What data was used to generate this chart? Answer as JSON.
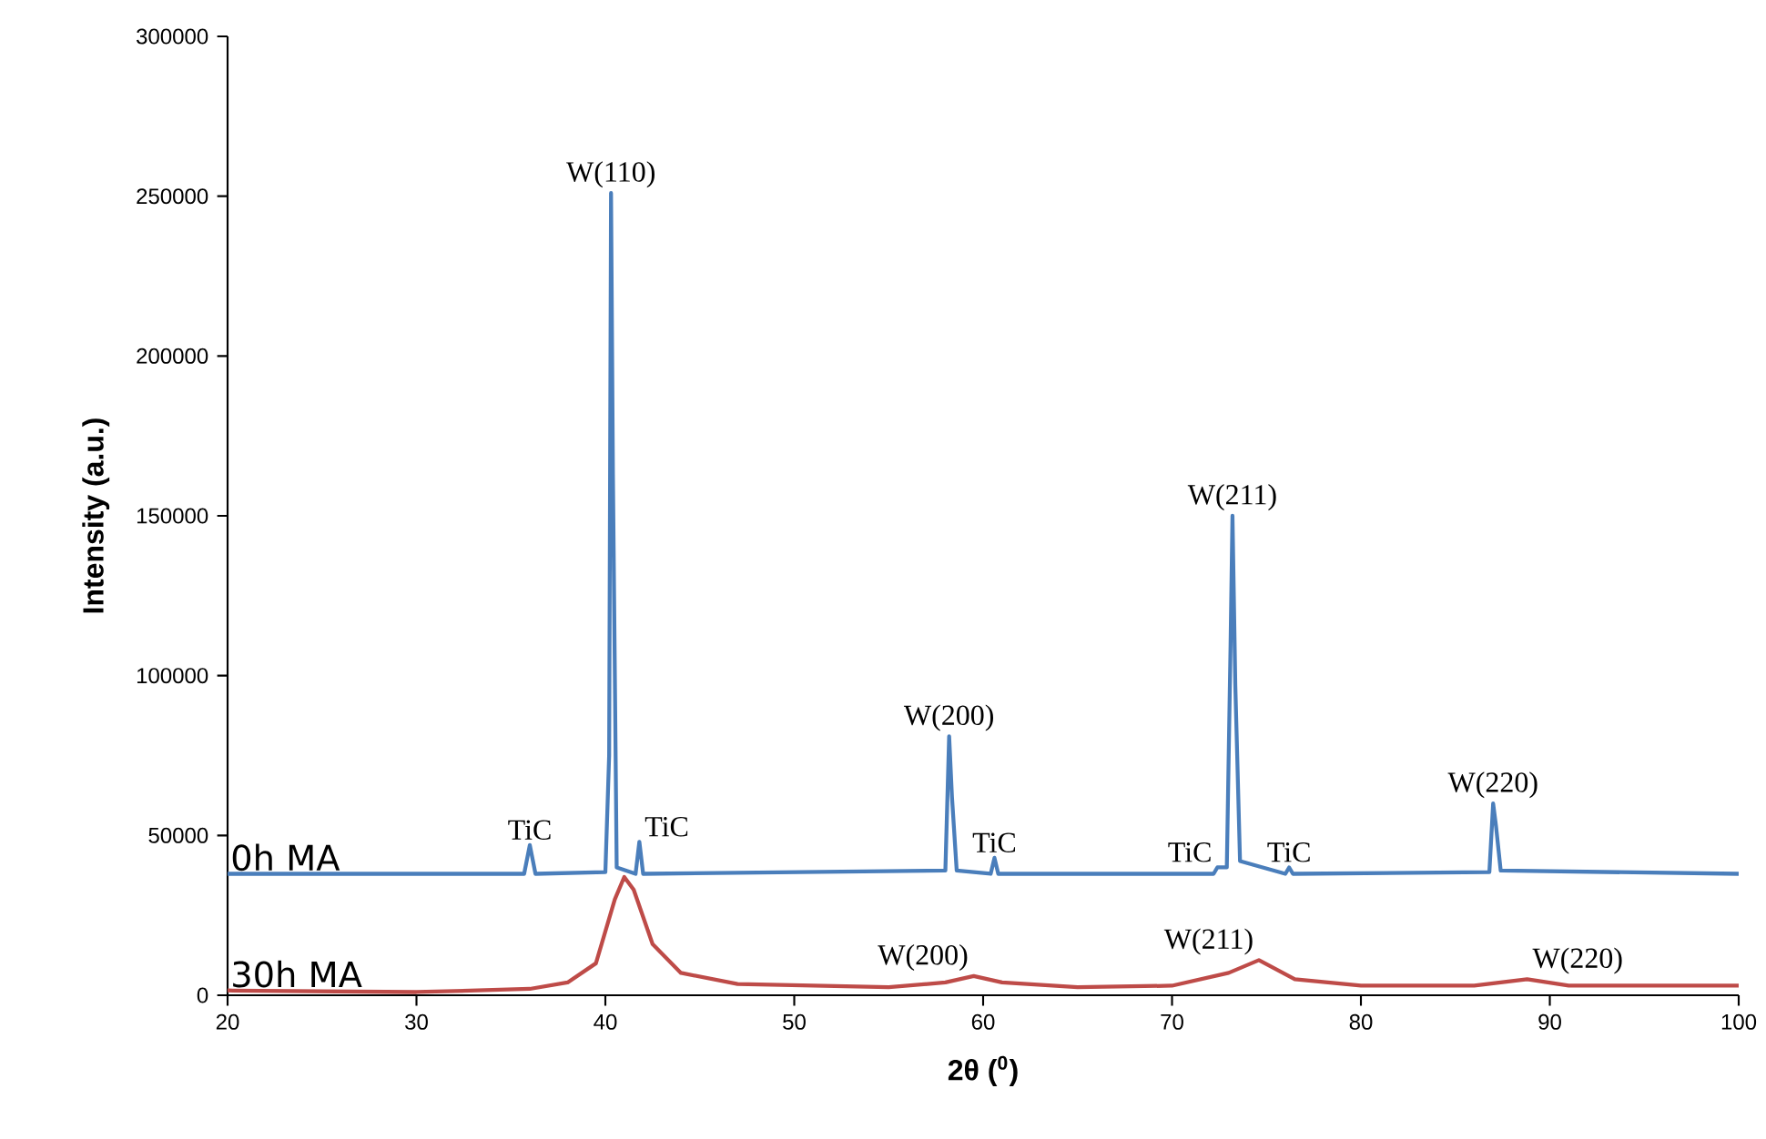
{
  "chart_data": {
    "type": "line",
    "xlabel": "2θ ($^{0}$)",
    "ylabel": "Intensity (a.u.)",
    "xlim": [
      20,
      100
    ],
    "xticks": [
      20,
      30,
      40,
      50,
      60,
      70,
      80,
      90,
      100
    ],
    "ylim": [
      0,
      300000
    ],
    "yticks": [
      0,
      50000,
      100000,
      150000,
      200000,
      250000,
      300000
    ],
    "grid": false,
    "legend": false,
    "marker": "none",
    "line_style": "solid",
    "series": [
      {
        "name": "0h MA",
        "color": "#4a7ebb",
        "x": [
          20,
          30,
          35.7,
          36.0,
          36.3,
          40.0,
          40.2,
          40.3,
          40.4,
          40.6,
          41.6,
          41.8,
          42.0,
          58.0,
          58.2,
          58.35,
          58.6,
          60.4,
          60.6,
          60.8,
          72.2,
          72.4,
          72.9,
          73.1,
          73.2,
          73.35,
          73.6,
          76.0,
          76.2,
          76.4,
          86.8,
          87.0,
          87.15,
          87.4,
          100
        ],
        "values": [
          38000,
          38000,
          38000,
          47000,
          38000,
          38500,
          75000,
          251000,
          163000,
          40000,
          38000,
          48000,
          38000,
          39000,
          81000,
          62000,
          39000,
          38000,
          43000,
          38000,
          38000,
          40000,
          40000,
          110000,
          150000,
          97000,
          42000,
          38000,
          40000,
          38000,
          38500,
          60000,
          53000,
          39000,
          38000
        ]
      },
      {
        "name": "30h MA",
        "color": "#be4b48",
        "x": [
          20,
          30,
          36,
          38,
          39.5,
          40.5,
          41.0,
          41.5,
          42.5,
          44,
          47,
          55,
          58,
          59.5,
          61,
          65,
          70,
          73,
          74.6,
          76.5,
          80,
          86,
          88.8,
          91,
          100
        ],
        "values": [
          1500,
          1000,
          2000,
          4000,
          10000,
          30000,
          37000,
          33000,
          16000,
          7000,
          3500,
          2500,
          4000,
          6000,
          4000,
          2500,
          3000,
          7000,
          11000,
          5000,
          3000,
          3000,
          5000,
          3000,
          3000
        ]
      }
    ],
    "annotations": [
      {
        "text": "W(110)",
        "x": 40.3,
        "y": 251000
      },
      {
        "text": "TiC",
        "x": 36.0,
        "y": 47000
      },
      {
        "text": "TiC",
        "x": 41.8,
        "y": 48000
      },
      {
        "text": "W(200)",
        "x": 58.2,
        "y": 81000
      },
      {
        "text": "TiC",
        "x": 60.6,
        "y": 43000
      },
      {
        "text": "TiC",
        "x": 72.4,
        "y": 40000
      },
      {
        "text": "W(211)",
        "x": 73.2,
        "y": 150000
      },
      {
        "text": "TiC",
        "x": 76.2,
        "y": 40000
      },
      {
        "text": "W(220)",
        "x": 87.0,
        "y": 60000
      },
      {
        "text": "W(200)",
        "x": 59.5,
        "y": 6000
      },
      {
        "text": "W(211)",
        "x": 74.6,
        "y": 11000
      },
      {
        "text": "W(220)",
        "x": 88.8,
        "y": 5000
      }
    ]
  }
}
